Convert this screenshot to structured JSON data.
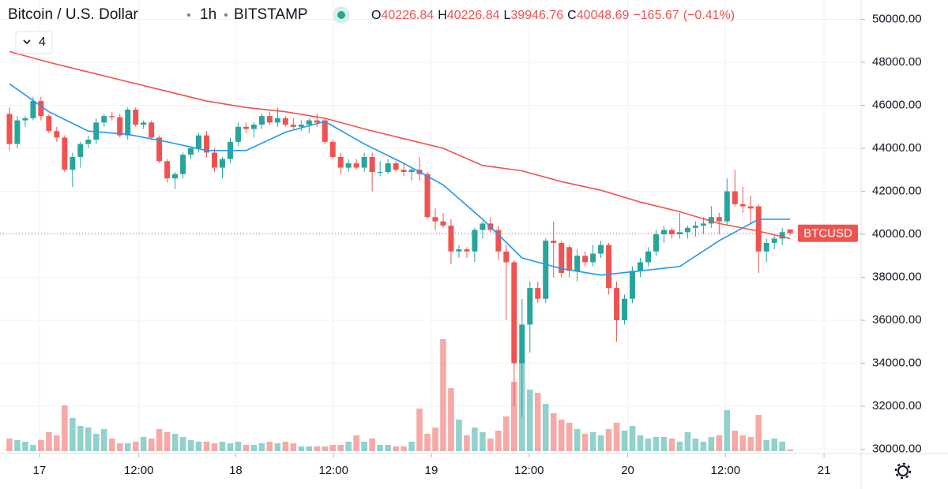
{
  "header": {
    "symbol": "Bitcoin / U.S. Dollar",
    "interval": "1h",
    "exchange": "BITSTAMP",
    "legend_labels": [
      "O",
      "H",
      "L",
      "C"
    ],
    "change": {
      "value": -165.67,
      "label": "−165.67"
    },
    "change_pct": {
      "value": -0.41,
      "label": "(−0.41%)"
    },
    "indicators_count": 4,
    "price_label": "BTCUSD"
  },
  "chart_data": {
    "type": "candlestick",
    "up_color": "#26a69a",
    "down_color": "#ef5350",
    "xlim": [
      -1.2,
      108
    ],
    "ylim": [
      29800,
      50900
    ],
    "xticks": [
      {
        "value": 3.8,
        "label": "17"
      },
      {
        "value": 16.4,
        "label": "12:00"
      },
      {
        "value": 28.7,
        "label": "18"
      },
      {
        "value": 41.1,
        "label": "12:00"
      },
      {
        "value": 53.5,
        "label": "19"
      },
      {
        "value": 65.9,
        "label": "12:00"
      },
      {
        "value": 78.4,
        "label": "20"
      },
      {
        "value": 90.8,
        "label": "12:00"
      },
      {
        "value": 103.3,
        "label": "21"
      }
    ],
    "yticks": [
      {
        "value": 30000,
        "label": "30000.00"
      },
      {
        "value": 32000,
        "label": "32000.00"
      },
      {
        "value": 34000,
        "label": "34000.00"
      },
      {
        "value": 36000,
        "label": "36000.00"
      },
      {
        "value": 38000,
        "label": "38000.00"
      },
      {
        "value": 40000,
        "label": "40000.00"
      },
      {
        "value": 42000,
        "label": "42000.00"
      },
      {
        "value": 44000,
        "label": "44000.00"
      },
      {
        "value": 46000,
        "label": "46000.00"
      },
      {
        "value": 48000,
        "label": "48000.00"
      },
      {
        "value": 50000,
        "label": "50000.00"
      }
    ],
    "grid": true,
    "open": [
      45600,
      44200,
      45300,
      45400,
      46200,
      45500,
      44800,
      44500,
      43000,
      43600,
      44200,
      44400,
      45200,
      45500,
      45450,
      44600,
      45800,
      45100,
      45200,
      44500,
      43400,
      42600,
      42800,
      43700,
      44000,
      44600,
      43800,
      43100,
      43500,
      44300,
      45000,
      44900,
      45100,
      45500,
      45200,
      45400,
      45100,
      45000,
      45100,
      45300,
      45300,
      44300,
      43600,
      43100,
      43300,
      43100,
      43600,
      42900,
      42900,
      43300,
      43000,
      42900,
      43000,
      42800,
      40800,
      40600,
      40400,
      39200,
      39300,
      39200,
      40200,
      40500,
      40200,
      39200,
      38700,
      34000,
      35800,
      37500,
      37000,
      39700,
      39600,
      39400,
      38300,
      39000,
      38700,
      39100,
      39500,
      37500,
      36000,
      37000,
      38300,
      38700,
      39200,
      40000,
      40200,
      40000,
      40100,
      40300,
      40400,
      40500,
      40800,
      40600,
      42000,
      41400,
      41300,
      41300,
      39200,
      39600,
      39800,
      40226.84
    ],
    "high": [
      45900,
      45500,
      45500,
      46400,
      46400,
      45600,
      45000,
      44600,
      43800,
      44300,
      44600,
      45400,
      45600,
      45700,
      45600,
      45900,
      45900,
      45300,
      45300,
      44600,
      43500,
      42900,
      43800,
      44100,
      44700,
      44800,
      44000,
      43600,
      44500,
      45200,
      45200,
      45200,
      45600,
      45700,
      45900,
      45500,
      45400,
      45300,
      45400,
      45600,
      45400,
      44400,
      43800,
      43500,
      43500,
      43800,
      43800,
      43400,
      43500,
      43400,
      43300,
      43100,
      43600,
      42900,
      41200,
      41000,
      40700,
      39500,
      39400,
      40300,
      40600,
      40800,
      40400,
      39500,
      38800,
      37000,
      37800,
      37800,
      39800,
      40600,
      39700,
      39500,
      39300,
      39200,
      39500,
      39700,
      39600,
      37800,
      37200,
      38500,
      38900,
      39400,
      40200,
      40400,
      40300,
      41000,
      40400,
      40600,
      40800,
      41300,
      41000,
      42600,
      43000,
      42200,
      41800,
      41400,
      39800,
      40000,
      40300,
      40226.84
    ],
    "low": [
      43900,
      44000,
      45000,
      45300,
      45300,
      44700,
      44300,
      42900,
      42200,
      43100,
      44000,
      44200,
      45000,
      45300,
      44500,
      44400,
      45000,
      44900,
      44400,
      43300,
      42400,
      42100,
      42600,
      43500,
      43800,
      43600,
      42900,
      42600,
      43300,
      44100,
      44700,
      44500,
      44900,
      45100,
      45000,
      45000,
      44900,
      44800,
      44700,
      45000,
      44200,
      43500,
      42800,
      42900,
      43000,
      42900,
      42000,
      42700,
      42800,
      42900,
      42700,
      42500,
      42500,
      40700,
      40200,
      40300,
      38600,
      38900,
      38900,
      38700,
      39800,
      40100,
      38800,
      36000,
      32000,
      31500,
      34500,
      36800,
      36800,
      38000,
      38000,
      38000,
      37800,
      38500,
      38500,
      38900,
      37200,
      35000,
      35800,
      36800,
      38000,
      38500,
      39000,
      39600,
      39800,
      39800,
      39800,
      39900,
      40000,
      40300,
      40000,
      40400,
      41300,
      41000,
      40500,
      38200,
      38700,
      39300,
      39500,
      39946.76
    ],
    "close": [
      44200,
      45300,
      45400,
      46200,
      45500,
      44800,
      44500,
      43000,
      43600,
      44200,
      44400,
      45200,
      45500,
      45450,
      44600,
      45800,
      45100,
      45200,
      44500,
      43400,
      42600,
      42800,
      43700,
      44000,
      44600,
      43800,
      43100,
      43500,
      44300,
      45000,
      44900,
      45100,
      45500,
      45200,
      45400,
      45100,
      45000,
      45100,
      45300,
      45200,
      44300,
      43600,
      43100,
      43300,
      43100,
      43600,
      42900,
      42900,
      43300,
      43000,
      42900,
      43000,
      42800,
      40800,
      40600,
      40400,
      39200,
      39300,
      39200,
      40200,
      40500,
      40200,
      39200,
      38700,
      34000,
      35800,
      37500,
      37000,
      39700,
      39600,
      38200,
      38300,
      39000,
      38700,
      39100,
      39500,
      37500,
      36000,
      37000,
      38300,
      38700,
      39200,
      40000,
      40200,
      40000,
      40100,
      40300,
      40400,
      40500,
      40800,
      40600,
      42000,
      41400,
      41300,
      41200,
      39200,
      39600,
      39800,
      40100,
      40048.69
    ],
    "volume_lim": [
      0,
      100
    ],
    "volume": [
      8,
      7,
      6,
      4,
      7,
      12,
      10,
      29,
      21,
      16,
      15,
      11,
      14,
      8,
      5,
      5,
      6,
      9,
      8,
      14,
      12,
      11,
      9,
      7,
      6,
      6,
      5,
      6,
      5,
      6,
      4,
      4,
      5,
      6,
      5,
      6,
      5,
      3,
      3,
      3,
      3,
      4,
      4,
      6,
      10,
      6,
      8,
      4,
      4,
      3,
      3,
      6,
      27,
      11,
      15,
      71,
      40,
      20,
      10,
      15,
      12,
      8,
      13,
      22,
      44,
      58,
      39,
      37,
      30,
      24,
      20,
      18,
      14,
      11,
      12,
      10,
      14,
      18,
      13,
      16,
      10,
      8,
      9,
      9,
      8,
      6,
      12,
      8,
      6,
      9,
      10,
      26,
      13,
      10,
      9,
      23,
      7,
      8,
      6,
      1
    ],
    "overlays": [
      {
        "color": "#2196f3",
        "x": [
          0,
          5,
          10,
          15,
          20,
          25,
          30,
          35,
          40,
          45,
          50,
          55,
          60,
          65,
          70,
          75,
          80,
          85,
          90,
          95,
          99
        ],
        "values": [
          47000,
          45700,
          44800,
          44650,
          44300,
          43900,
          43900,
          44750,
          45250,
          44200,
          43300,
          42300,
          40700,
          38900,
          38400,
          38100,
          38300,
          38500,
          39700,
          40700,
          40700
        ]
      },
      {
        "color": "#ef5350",
        "x": [
          0,
          5,
          10,
          15,
          20,
          25,
          30,
          35,
          40,
          45,
          50,
          55,
          60,
          65,
          70,
          75,
          80,
          85,
          90,
          95,
          99
        ],
        "values": [
          48500,
          48000,
          47550,
          47100,
          46650,
          46200,
          45900,
          45700,
          45400,
          44900,
          44450,
          44000,
          43200,
          42950,
          42450,
          42050,
          41500,
          41050,
          40500,
          40150,
          39800
        ]
      }
    ]
  }
}
